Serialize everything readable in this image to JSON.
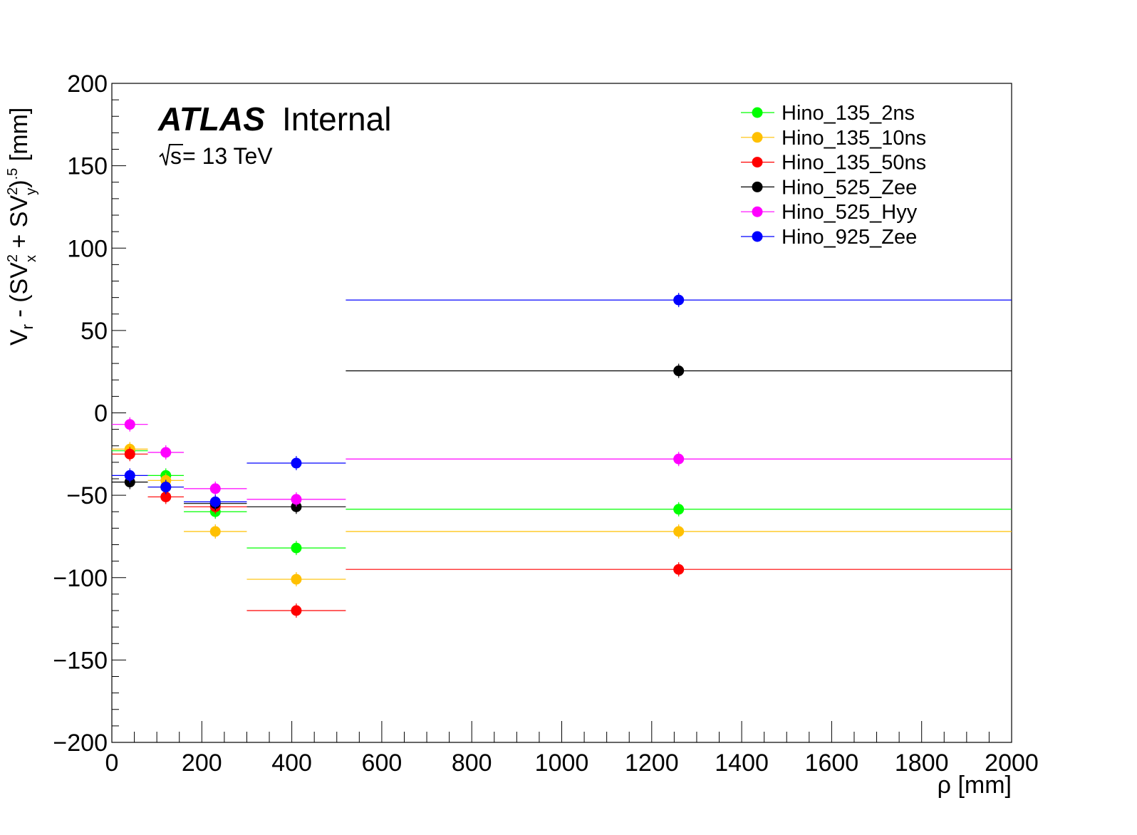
{
  "labels": {
    "atlas": "ATLAS",
    "internal": "Internal",
    "energy_prefix": "s",
    "energy_value": " = 13 TeV"
  },
  "chart_data": {
    "type": "scatter",
    "title": "",
    "xlabel": "ρ [mm]",
    "ylabel": "V_r - (SV_x^2 + SV_y^2)^.5 [mm]",
    "xlim": [
      0,
      2000
    ],
    "ylim": [
      -200,
      200
    ],
    "xticks": [
      0,
      200,
      400,
      600,
      800,
      1000,
      1200,
      1400,
      1600,
      1800,
      2000
    ],
    "yticks": [
      -200,
      -150,
      -100,
      -50,
      0,
      50,
      100,
      150,
      200
    ],
    "ytick_labels": [
      "−200",
      "−150",
      "−100",
      "−50",
      "0",
      "50",
      "100",
      "150",
      "200"
    ],
    "grid": false,
    "legend_position": "top-right",
    "bins": [
      [
        0,
        80
      ],
      [
        80,
        160
      ],
      [
        160,
        300
      ],
      [
        300,
        520
      ],
      [
        520,
        2000
      ]
    ],
    "bin_centers": [
      40,
      120,
      230,
      410,
      1260
    ],
    "series": [
      {
        "name": "Hino_135_2ns",
        "color": "#00ff00",
        "values": [
          -23,
          -38,
          -60,
          -82,
          -58.5
        ]
      },
      {
        "name": "Hino_135_10ns",
        "color": "#ffc000",
        "values": [
          -22,
          -41,
          -72,
          -101,
          -72
        ]
      },
      {
        "name": "Hino_135_50ns",
        "color": "#ff0000",
        "values": [
          -25,
          -51,
          -57,
          -120,
          -95
        ]
      },
      {
        "name": "Hino_525_Zee",
        "color": "#000000",
        "values": [
          -42,
          -45,
          -55,
          -57,
          25.5
        ]
      },
      {
        "name": "Hino_525_Hyy",
        "color": "#ff00ff",
        "values": [
          -7,
          -24,
          -46,
          -52.5,
          -28
        ]
      },
      {
        "name": "Hino_925_Zee",
        "color": "#0000ff",
        "values": [
          -38,
          -45,
          -54,
          -30.5,
          68.5
        ]
      }
    ]
  }
}
